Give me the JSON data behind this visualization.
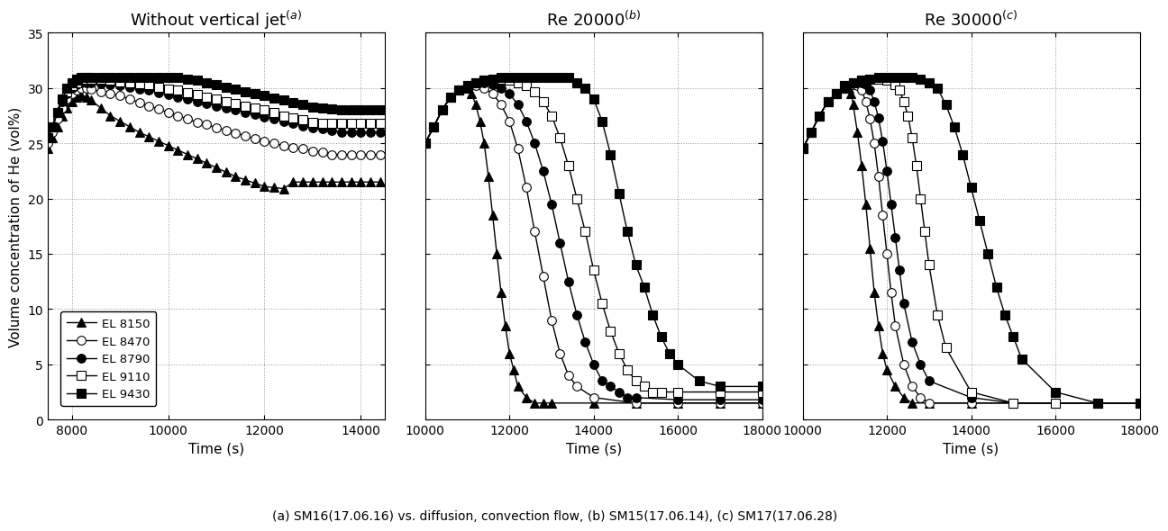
{
  "title_a": "Without vertical jet",
  "title_b": "Re 20000",
  "title_c": "Re 30000",
  "ylabel": "Volume concentration of He (vol%)",
  "xlabel": "Time (s)",
  "caption": "(a) SM16(17.06.16) vs. diffusion, convection flow, (b) SM15(17.06.14), (c) SM17(17.06.28)",
  "ylim": [
    0,
    35
  ],
  "yticks": [
    0,
    5,
    10,
    15,
    20,
    25,
    30,
    35
  ],
  "panel_a": {
    "xlim": [
      7500,
      14500
    ],
    "xticks": [
      8000,
      10000,
      12000,
      14000
    ],
    "series": {
      "EL8150": {
        "t": [
          7500,
          7600,
          7700,
          7800,
          7900,
          8000,
          8100,
          8200,
          8300,
          8400,
          8600,
          8800,
          9000,
          9200,
          9400,
          9600,
          9800,
          10000,
          10200,
          10400,
          10600,
          10800,
          11000,
          11200,
          11400,
          11600,
          11800,
          12000,
          12200,
          12400,
          12600,
          12800,
          13000,
          13200,
          13400,
          13600,
          13800,
          14000,
          14200,
          14400
        ],
        "v": [
          24.5,
          25.5,
          26.5,
          27.5,
          28.2,
          28.8,
          29.2,
          29.3,
          29.2,
          28.9,
          28.2,
          27.5,
          27.0,
          26.5,
          26.0,
          25.6,
          25.2,
          24.8,
          24.4,
          24.0,
          23.6,
          23.2,
          22.8,
          22.4,
          22.0,
          21.7,
          21.4,
          21.1,
          21.0,
          20.9,
          21.5,
          21.5,
          21.5,
          21.5,
          21.5,
          21.5,
          21.5,
          21.5,
          21.5,
          21.5
        ]
      },
      "EL8470": {
        "t": [
          7500,
          7600,
          7700,
          7800,
          7900,
          8000,
          8100,
          8200,
          8300,
          8400,
          8600,
          8800,
          9000,
          9200,
          9400,
          9600,
          9800,
          10000,
          10200,
          10400,
          10600,
          10800,
          11000,
          11200,
          11400,
          11600,
          11800,
          12000,
          12200,
          12400,
          12600,
          12800,
          13000,
          13200,
          13400,
          13600,
          13800,
          14000,
          14200,
          14400
        ],
        "v": [
          25.0,
          26.0,
          27.2,
          28.2,
          29.0,
          29.5,
          29.8,
          30.0,
          30.0,
          29.9,
          29.7,
          29.5,
          29.3,
          29.0,
          28.7,
          28.4,
          28.1,
          27.8,
          27.5,
          27.2,
          26.9,
          26.7,
          26.4,
          26.2,
          25.9,
          25.7,
          25.4,
          25.2,
          25.0,
          24.8,
          24.6,
          24.5,
          24.3,
          24.2,
          24.0,
          24.0,
          24.0,
          24.0,
          24.0,
          24.0
        ]
      },
      "EL8790": {
        "t": [
          7500,
          7600,
          7700,
          7800,
          7900,
          8000,
          8100,
          8200,
          8300,
          8400,
          8600,
          8800,
          9000,
          9200,
          9400,
          9600,
          9800,
          10000,
          10200,
          10400,
          10600,
          10800,
          11000,
          11200,
          11400,
          11600,
          11800,
          12000,
          12200,
          12400,
          12600,
          12800,
          13000,
          13200,
          13400,
          13600,
          13800,
          14000,
          14200,
          14400
        ],
        "v": [
          25.5,
          26.5,
          27.8,
          28.8,
          29.5,
          30.0,
          30.3,
          30.5,
          30.5,
          30.5,
          30.4,
          30.3,
          30.2,
          30.1,
          29.9,
          29.8,
          29.6,
          29.4,
          29.2,
          29.0,
          28.8,
          28.6,
          28.4,
          28.2,
          28.0,
          27.8,
          27.6,
          27.4,
          27.2,
          27.0,
          26.8,
          26.6,
          26.4,
          26.3,
          26.2,
          26.0,
          26.0,
          26.0,
          26.0,
          26.0
        ]
      },
      "EL9110": {
        "t": [
          7500,
          7600,
          7700,
          7800,
          7900,
          8000,
          8100,
          8200,
          8300,
          8400,
          8600,
          8800,
          9000,
          9200,
          9400,
          9600,
          9800,
          10000,
          10200,
          10400,
          10600,
          10800,
          11000,
          11200,
          11400,
          11600,
          11800,
          12000,
          12200,
          12400,
          12600,
          12800,
          13000,
          13200,
          13400,
          13600,
          13800,
          14000,
          14200,
          14400
        ],
        "v": [
          25.5,
          26.5,
          27.8,
          29.0,
          29.7,
          30.2,
          30.5,
          30.7,
          30.8,
          30.8,
          30.8,
          30.7,
          30.6,
          30.5,
          30.4,
          30.3,
          30.1,
          29.9,
          29.8,
          29.6,
          29.4,
          29.2,
          29.0,
          28.8,
          28.6,
          28.4,
          28.2,
          28.0,
          27.8,
          27.5,
          27.3,
          27.1,
          26.9,
          26.8,
          26.8,
          26.8,
          26.8,
          26.8,
          26.8,
          26.8
        ]
      },
      "EL9430": {
        "t": [
          7500,
          7600,
          7700,
          7800,
          7900,
          8000,
          8100,
          8200,
          8300,
          8400,
          8600,
          8800,
          9000,
          9200,
          9400,
          9600,
          9800,
          10000,
          10200,
          10400,
          10600,
          10800,
          11000,
          11200,
          11400,
          11600,
          11800,
          12000,
          12200,
          12400,
          12600,
          12800,
          13000,
          13200,
          13400,
          13600,
          13800,
          14000,
          14200,
          14400
        ],
        "v": [
          25.5,
          26.5,
          27.8,
          29.0,
          30.0,
          30.5,
          30.8,
          31.0,
          31.0,
          31.0,
          31.0,
          31.0,
          31.0,
          31.0,
          31.0,
          31.0,
          31.0,
          31.0,
          31.0,
          30.8,
          30.7,
          30.5,
          30.3,
          30.1,
          29.9,
          29.7,
          29.5,
          29.3,
          29.1,
          28.9,
          28.7,
          28.5,
          28.3,
          28.2,
          28.1,
          28.0,
          28.0,
          28.0,
          28.0,
          28.0
        ]
      }
    }
  },
  "panel_b": {
    "xlim": [
      10000,
      18000
    ],
    "xticks": [
      10000,
      12000,
      14000,
      16000,
      18000
    ],
    "series": {
      "EL8150": {
        "t": [
          10000,
          10200,
          10400,
          10600,
          10800,
          11000,
          11100,
          11200,
          11300,
          11400,
          11500,
          11600,
          11700,
          11800,
          11900,
          12000,
          12100,
          12200,
          12400,
          12600,
          12800,
          13000,
          14000,
          15000,
          16000,
          17000,
          18000
        ],
        "v": [
          25.0,
          26.5,
          28.0,
          29.2,
          29.8,
          30.0,
          29.5,
          28.5,
          27.0,
          25.0,
          22.0,
          18.5,
          15.0,
          11.5,
          8.5,
          6.0,
          4.5,
          3.0,
          2.0,
          1.5,
          1.5,
          1.5,
          1.5,
          1.5,
          1.5,
          1.5,
          1.5
        ]
      },
      "EL8470": {
        "t": [
          10000,
          10200,
          10400,
          10600,
          10800,
          11000,
          11200,
          11400,
          11600,
          11800,
          12000,
          12200,
          12400,
          12600,
          12800,
          13000,
          13200,
          13400,
          13600,
          14000,
          15000,
          16000,
          17000,
          18000
        ],
        "v": [
          25.0,
          26.5,
          28.0,
          29.2,
          29.8,
          30.2,
          30.2,
          30.0,
          29.5,
          28.5,
          27.0,
          24.5,
          21.0,
          17.0,
          13.0,
          9.0,
          6.0,
          4.0,
          3.0,
          2.0,
          1.5,
          1.5,
          1.5,
          1.5
        ]
      },
      "EL8790": {
        "t": [
          10000,
          10200,
          10400,
          10600,
          10800,
          11000,
          11200,
          11400,
          11600,
          11800,
          12000,
          12200,
          12400,
          12600,
          12800,
          13000,
          13200,
          13400,
          13600,
          13800,
          14000,
          14200,
          14400,
          14600,
          14800,
          15000,
          16000,
          17000,
          18000
        ],
        "v": [
          25.0,
          26.5,
          28.0,
          29.2,
          29.8,
          30.2,
          30.5,
          30.5,
          30.3,
          30.0,
          29.5,
          28.5,
          27.0,
          25.0,
          22.5,
          19.5,
          16.0,
          12.5,
          9.5,
          7.0,
          5.0,
          3.5,
          3.0,
          2.5,
          2.0,
          2.0,
          1.8,
          1.8,
          1.8
        ]
      },
      "EL9110": {
        "t": [
          10000,
          10200,
          10400,
          10600,
          10800,
          11000,
          11200,
          11400,
          11600,
          11800,
          12000,
          12200,
          12400,
          12600,
          12800,
          13000,
          13200,
          13400,
          13600,
          13800,
          14000,
          14200,
          14400,
          14600,
          14800,
          15000,
          15200,
          15400,
          15600,
          16000,
          17000,
          18000
        ],
        "v": [
          25.0,
          26.5,
          28.0,
          29.2,
          29.8,
          30.2,
          30.5,
          30.7,
          30.8,
          30.8,
          30.7,
          30.5,
          30.2,
          29.7,
          28.8,
          27.5,
          25.5,
          23.0,
          20.0,
          17.0,
          13.5,
          10.5,
          8.0,
          6.0,
          4.5,
          3.5,
          3.0,
          2.5,
          2.5,
          2.5,
          2.5,
          2.5
        ]
      },
      "EL9430": {
        "t": [
          10000,
          10200,
          10400,
          10600,
          10800,
          11000,
          11200,
          11400,
          11600,
          11800,
          12000,
          12200,
          12400,
          12600,
          12800,
          13000,
          13200,
          13400,
          13600,
          13800,
          14000,
          14200,
          14400,
          14600,
          14800,
          15000,
          15200,
          15400,
          15600,
          15800,
          16000,
          16500,
          17000,
          18000
        ],
        "v": [
          25.0,
          26.5,
          28.0,
          29.2,
          29.8,
          30.2,
          30.5,
          30.7,
          30.8,
          31.0,
          31.0,
          31.0,
          31.0,
          31.0,
          31.0,
          31.0,
          31.0,
          31.0,
          30.5,
          30.0,
          29.0,
          27.0,
          24.0,
          20.5,
          17.0,
          14.0,
          12.0,
          9.5,
          7.5,
          6.0,
          5.0,
          3.5,
          3.0,
          3.0
        ]
      }
    }
  },
  "panel_c": {
    "xlim": [
      10000,
      18000
    ],
    "xticks": [
      10000,
      12000,
      14000,
      16000,
      18000
    ],
    "series": {
      "EL8150": {
        "t": [
          10000,
          10200,
          10400,
          10600,
          10800,
          11000,
          11100,
          11150,
          11200,
          11300,
          11400,
          11500,
          11600,
          11700,
          11800,
          11900,
          12000,
          12200,
          12400,
          12600,
          13000,
          14000,
          15000,
          16000,
          17000,
          18000
        ],
        "v": [
          24.5,
          26.0,
          27.5,
          28.8,
          29.5,
          30.0,
          30.0,
          29.5,
          28.5,
          26.0,
          23.0,
          19.5,
          15.5,
          11.5,
          8.5,
          6.0,
          4.5,
          3.0,
          2.0,
          1.5,
          1.5,
          1.5,
          1.5,
          1.5,
          1.5,
          1.5
        ]
      },
      "EL8470": {
        "t": [
          10000,
          10200,
          10400,
          10600,
          10800,
          11000,
          11200,
          11300,
          11400,
          11500,
          11600,
          11700,
          11800,
          11900,
          12000,
          12100,
          12200,
          12400,
          12600,
          12800,
          13000,
          14000,
          15000,
          16000,
          17000,
          18000
        ],
        "v": [
          24.5,
          26.0,
          27.5,
          28.8,
          29.5,
          30.2,
          30.3,
          30.2,
          29.8,
          28.8,
          27.2,
          25.0,
          22.0,
          18.5,
          15.0,
          11.5,
          8.5,
          5.0,
          3.0,
          2.0,
          1.5,
          1.5,
          1.5,
          1.5,
          1.5,
          1.5
        ]
      },
      "EL8790": {
        "t": [
          10000,
          10200,
          10400,
          10600,
          10800,
          11000,
          11200,
          11400,
          11500,
          11600,
          11700,
          11800,
          11900,
          12000,
          12100,
          12200,
          12300,
          12400,
          12600,
          12800,
          13000,
          14000,
          15000,
          16000,
          17000,
          18000
        ],
        "v": [
          24.5,
          26.0,
          27.5,
          28.8,
          29.5,
          30.2,
          30.5,
          30.5,
          30.3,
          29.8,
          28.8,
          27.3,
          25.2,
          22.5,
          19.5,
          16.5,
          13.5,
          10.5,
          7.0,
          5.0,
          3.5,
          2.0,
          1.5,
          1.5,
          1.5,
          1.5
        ]
      },
      "EL9110": {
        "t": [
          10000,
          10200,
          10400,
          10600,
          10800,
          11000,
          11200,
          11400,
          11600,
          11800,
          12000,
          12200,
          12300,
          12400,
          12500,
          12600,
          12700,
          12800,
          12900,
          13000,
          13200,
          13400,
          14000,
          15000,
          16000,
          17000,
          18000
        ],
        "v": [
          24.5,
          26.0,
          27.5,
          28.8,
          29.5,
          30.2,
          30.5,
          30.7,
          30.8,
          30.8,
          30.7,
          30.3,
          29.8,
          28.8,
          27.5,
          25.5,
          23.0,
          20.0,
          17.0,
          14.0,
          9.5,
          6.5,
          2.5,
          1.5,
          1.5,
          1.5,
          1.5
        ]
      },
      "EL9430": {
        "t": [
          10000,
          10200,
          10400,
          10600,
          10800,
          11000,
          11200,
          11400,
          11600,
          11800,
          12000,
          12200,
          12400,
          12600,
          12800,
          13000,
          13200,
          13400,
          13600,
          13800,
          14000,
          14200,
          14400,
          14600,
          14800,
          15000,
          15200,
          16000,
          17000,
          18000
        ],
        "v": [
          24.5,
          26.0,
          27.5,
          28.8,
          29.5,
          30.2,
          30.5,
          30.7,
          30.8,
          31.0,
          31.0,
          31.0,
          31.0,
          31.0,
          30.8,
          30.5,
          30.0,
          28.5,
          26.5,
          24.0,
          21.0,
          18.0,
          15.0,
          12.0,
          9.5,
          7.5,
          5.5,
          2.5,
          1.5,
          1.5
        ]
      }
    }
  },
  "series_styles": {
    "EL8150": {
      "marker": "^",
      "fillstyle": "full",
      "markersize": 7,
      "label": "EL 8150"
    },
    "EL8470": {
      "marker": "o",
      "fillstyle": "none",
      "markersize": 7,
      "label": "EL 8470"
    },
    "EL8790": {
      "marker": "o",
      "fillstyle": "full",
      "markersize": 7,
      "label": "EL 8790"
    },
    "EL9110": {
      "marker": "s",
      "fillstyle": "none",
      "markersize": 7,
      "label": "EL 9110"
    },
    "EL9430": {
      "marker": "s",
      "fillstyle": "full",
      "markersize": 7,
      "label": "EL 9430"
    }
  }
}
